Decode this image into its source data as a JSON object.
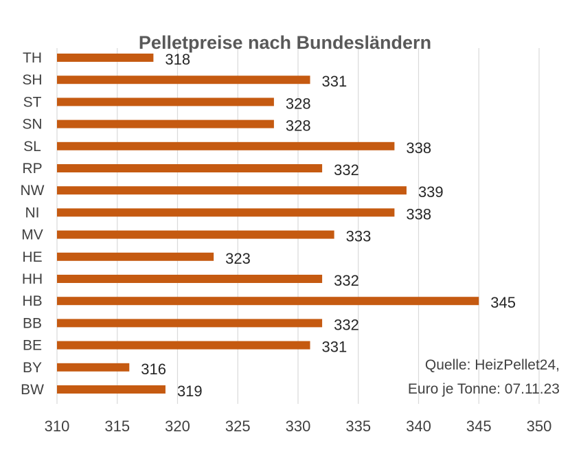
{
  "chart_data": {
    "type": "bar",
    "orientation": "horizontal",
    "title": "Pelletpreise  nach Bundesländern",
    "categories": [
      "TH",
      "SH",
      "ST",
      "SN",
      "SL",
      "RP",
      "NW",
      "NI",
      "MV",
      "HE",
      "HH",
      "HB",
      "BB",
      "BE",
      "BY",
      "BW"
    ],
    "values": [
      318,
      331,
      328,
      328,
      338,
      332,
      339,
      338,
      333,
      323,
      332,
      345,
      332,
      331,
      316,
      319
    ],
    "data_labels": [
      "318",
      "331",
      "328",
      "328",
      "338",
      "332",
      "339",
      "338",
      "333",
      "323",
      "332",
      "345",
      "332",
      "331",
      "316",
      "319"
    ],
    "xlim": [
      310,
      350
    ],
    "x_ticks": [
      310,
      315,
      320,
      325,
      330,
      335,
      340,
      345,
      350
    ],
    "x_tick_labels": [
      "310",
      "315",
      "320",
      "325",
      "330",
      "335",
      "340",
      "345",
      "350"
    ],
    "xlabel": "",
    "ylabel": "",
    "grid": true,
    "legend": "none",
    "bar_color": "#c55a11",
    "annotation_lines": [
      "Quelle: HeizPellet24,",
      "Euro je Tonne: 07.11.23"
    ]
  }
}
